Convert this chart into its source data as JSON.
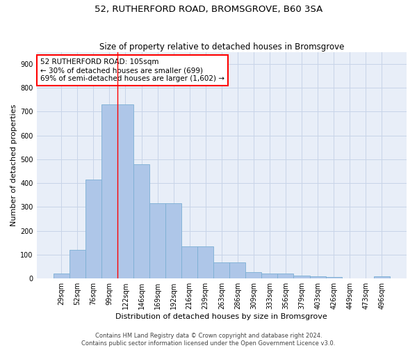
{
  "title": "52, RUTHERFORD ROAD, BROMSGROVE, B60 3SA",
  "subtitle": "Size of property relative to detached houses in Bromsgrove",
  "xlabel": "Distribution of detached houses by size in Bromsgrove",
  "ylabel": "Number of detached properties",
  "categories": [
    "29sqm",
    "52sqm",
    "76sqm",
    "99sqm",
    "122sqm",
    "146sqm",
    "169sqm",
    "192sqm",
    "216sqm",
    "239sqm",
    "263sqm",
    "286sqm",
    "309sqm",
    "333sqm",
    "356sqm",
    "379sqm",
    "403sqm",
    "426sqm",
    "449sqm",
    "473sqm",
    "496sqm"
  ],
  "bar_heights": [
    20,
    120,
    415,
    730,
    730,
    480,
    315,
    315,
    135,
    135,
    68,
    68,
    28,
    22,
    20,
    12,
    10,
    7,
    0,
    0,
    8
  ],
  "bar_color": "#aec6e8",
  "bar_edge_color": "#7bafd4",
  "grid_color": "#c8d4e8",
  "bg_color": "#e8eef8",
  "vline_x": 3.5,
  "vline_color": "red",
  "annotation_text": "52 RUTHERFORD ROAD: 105sqm\n← 30% of detached houses are smaller (699)\n69% of semi-detached houses are larger (1,602) →",
  "annotation_box_color": "white",
  "annotation_box_edge_color": "red",
  "ylim": [
    0,
    950
  ],
  "yticks": [
    0,
    100,
    200,
    300,
    400,
    500,
    600,
    700,
    800,
    900
  ],
  "title_fontsize": 9.5,
  "subtitle_fontsize": 8.5,
  "xlabel_fontsize": 8,
  "ylabel_fontsize": 8,
  "tick_fontsize": 7,
  "annotation_fontsize": 7.5,
  "footer_fontsize": 6,
  "footer_line1": "Contains HM Land Registry data © Crown copyright and database right 2024.",
  "footer_line2": "Contains public sector information licensed under the Open Government Licence v3.0."
}
